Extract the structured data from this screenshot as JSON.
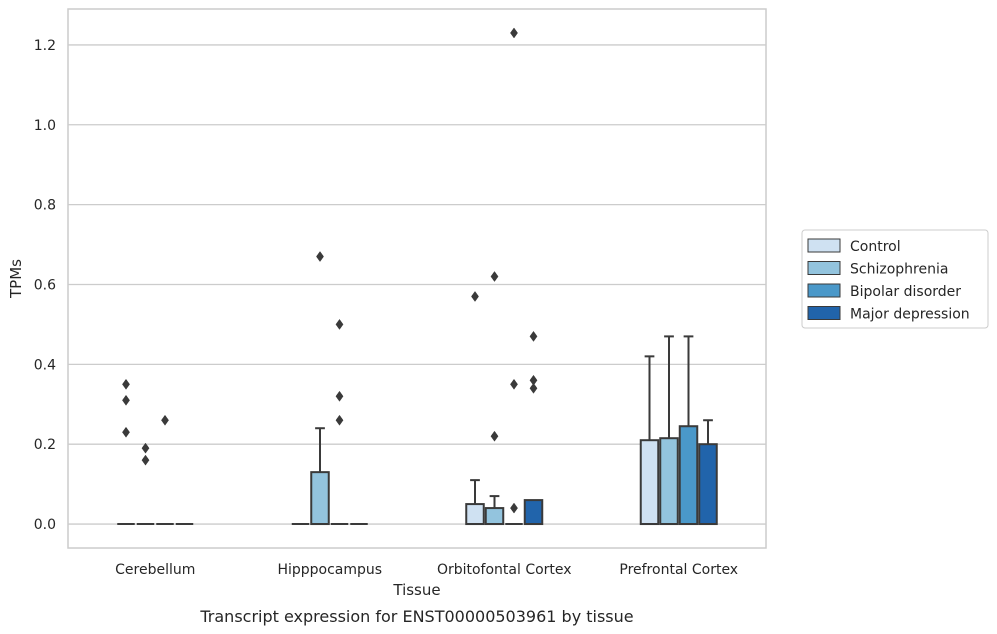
{
  "caption": "Transcript expression for ENST00000503961 by tissue",
  "chart_data": {
    "type": "boxplot",
    "xlabel": "Tissue",
    "ylabel": "TPMs",
    "ylim": [
      -0.06,
      1.29
    ],
    "yticks": [
      0.0,
      0.2,
      0.4,
      0.6,
      0.8,
      1.0,
      1.2
    ],
    "ytick_labels": [
      "0.0",
      "0.2",
      "0.4",
      "0.6",
      "0.8",
      "1.0",
      "1.2"
    ],
    "grid": true,
    "legend_position": "right",
    "categories": [
      "Cerebellum",
      "Hipppocampus",
      "Orbitofontal Cortex",
      "Prefrontal Cortex"
    ],
    "series": [
      {
        "name": "Control",
        "color": "#cfe1f2",
        "boxes": [
          {
            "q1": 0,
            "median": 0,
            "q3": 0,
            "whisker_low": 0,
            "whisker_high": 0,
            "outliers": [
              0.35,
              0.31,
              0.23
            ]
          },
          {
            "q1": 0,
            "median": 0,
            "q3": 0,
            "whisker_low": 0,
            "whisker_high": 0,
            "outliers": []
          },
          {
            "q1": 0,
            "median": 0,
            "q3": 0.05,
            "whisker_low": 0,
            "whisker_high": 0.11,
            "outliers": [
              0.57
            ]
          },
          {
            "q1": 0,
            "median": 0,
            "q3": 0.21,
            "whisker_low": 0,
            "whisker_high": 0.42,
            "outliers": []
          }
        ]
      },
      {
        "name": "Schizophrenia",
        "color": "#93c4de",
        "boxes": [
          {
            "q1": 0,
            "median": 0,
            "q3": 0,
            "whisker_low": 0,
            "whisker_high": 0,
            "outliers": [
              0.19,
              0.16
            ]
          },
          {
            "q1": 0,
            "median": 0,
            "q3": 0.13,
            "whisker_low": 0,
            "whisker_high": 0.24,
            "outliers": [
              0.67
            ]
          },
          {
            "q1": 0,
            "median": 0,
            "q3": 0.04,
            "whisker_low": 0,
            "whisker_high": 0.07,
            "outliers": [
              0.62,
              0.22
            ]
          },
          {
            "q1": 0,
            "median": 0,
            "q3": 0.215,
            "whisker_low": 0,
            "whisker_high": 0.47,
            "outliers": []
          }
        ]
      },
      {
        "name": "Bipolar disorder",
        "color": "#4a98c9",
        "boxes": [
          {
            "q1": 0,
            "median": 0,
            "q3": 0,
            "whisker_low": 0,
            "whisker_high": 0,
            "outliers": [
              0.26
            ]
          },
          {
            "q1": 0,
            "median": 0,
            "q3": 0,
            "whisker_low": 0,
            "whisker_high": 0,
            "outliers": [
              0.5,
              0.32,
              0.26
            ]
          },
          {
            "q1": 0,
            "median": 0,
            "q3": 0,
            "whisker_low": 0,
            "whisker_high": 0,
            "outliers": [
              1.23,
              0.35,
              0.04
            ]
          },
          {
            "q1": 0,
            "median": 0,
            "q3": 0.245,
            "whisker_low": 0,
            "whisker_high": 0.47,
            "outliers": []
          }
        ]
      },
      {
        "name": "Major depression",
        "color": "#2164ab",
        "boxes": [
          {
            "q1": 0,
            "median": 0,
            "q3": 0,
            "whisker_low": 0,
            "whisker_high": 0,
            "outliers": []
          },
          {
            "q1": 0,
            "median": 0,
            "q3": 0,
            "whisker_low": 0,
            "whisker_high": 0,
            "outliers": []
          },
          {
            "q1": 0,
            "median": 0,
            "q3": 0.06,
            "whisker_low": 0,
            "whisker_high": 0.06,
            "outliers": [
              0.47,
              0.36,
              0.34
            ]
          },
          {
            "q1": 0,
            "median": 0,
            "q3": 0.2,
            "whisker_low": 0,
            "whisker_high": 0.26,
            "outliers": []
          }
        ]
      }
    ]
  }
}
